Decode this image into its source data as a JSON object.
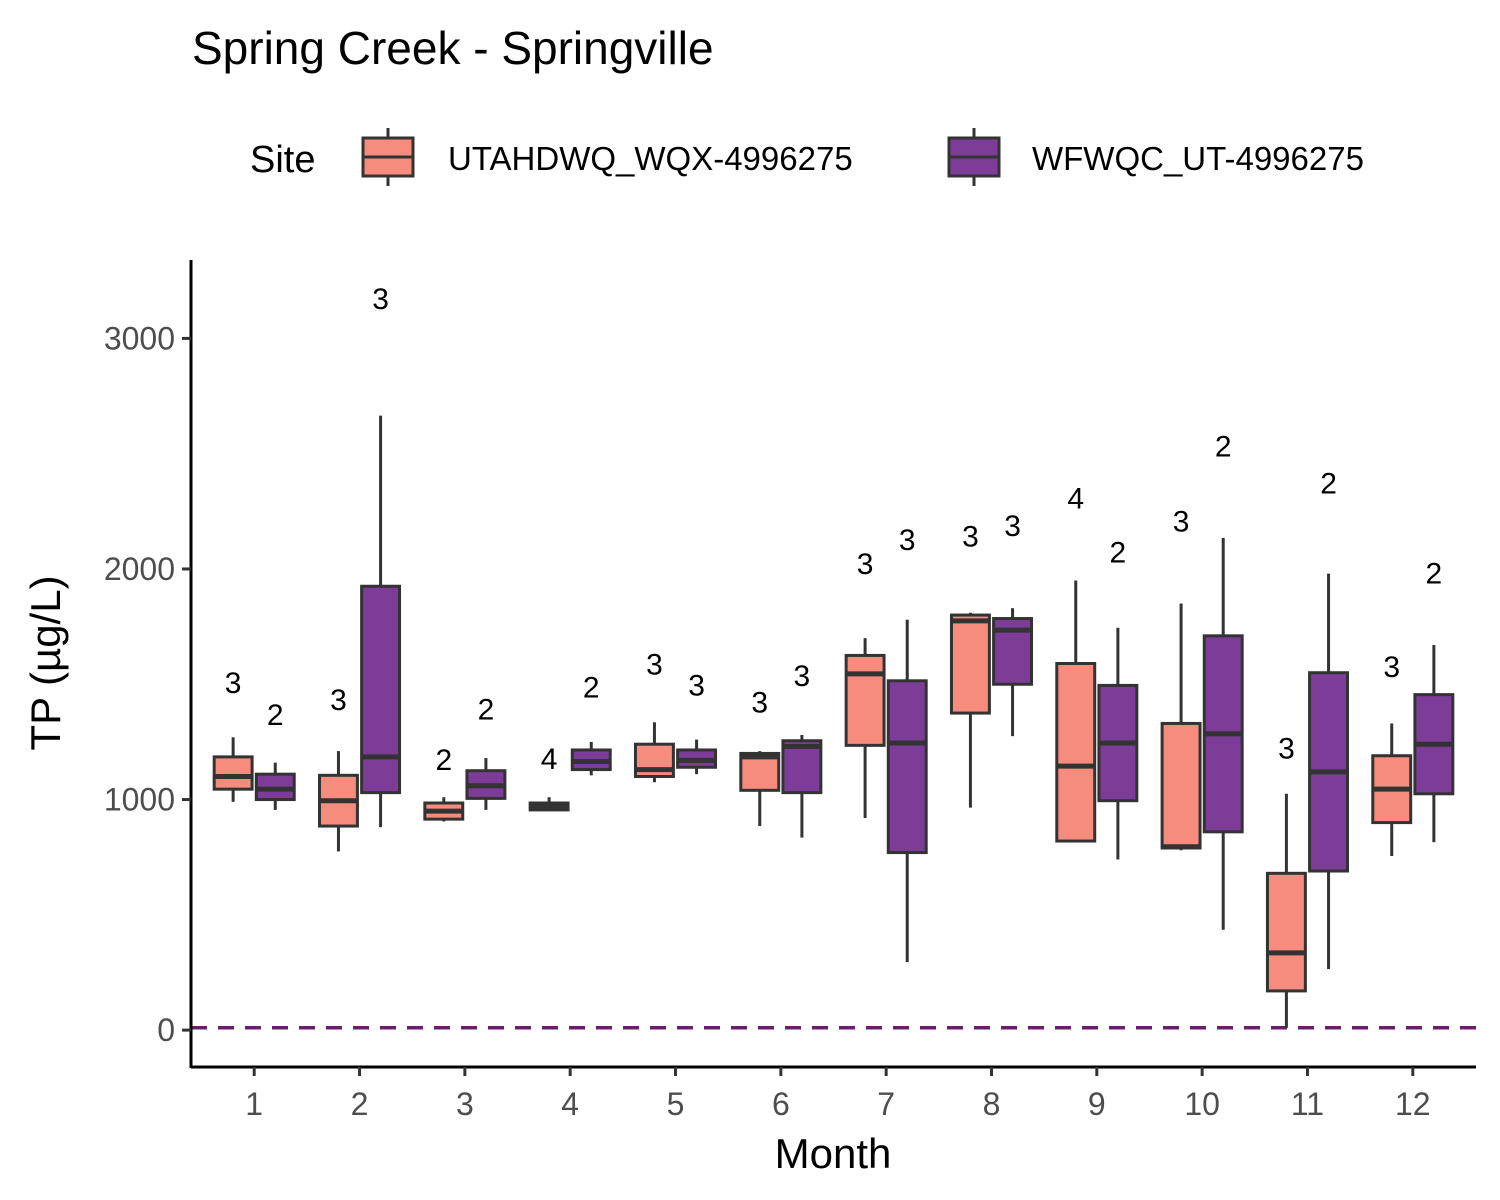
{
  "chart_data": {
    "type": "boxplot",
    "title": "Spring Creek - Springville",
    "xlabel": "Month",
    "ylabel": "TP (µg/L)",
    "ylim": [
      -160,
      3340
    ],
    "yticks": [
      0,
      1000,
      2000,
      3000
    ],
    "categories": [
      "1",
      "2",
      "3",
      "4",
      "5",
      "6",
      "7",
      "8",
      "9",
      "10",
      "11",
      "12"
    ],
    "reference_line": {
      "y": 10,
      "style": "dashed",
      "color": "#6a1d6e"
    },
    "legend": {
      "title": "Site",
      "position": "top"
    },
    "series": [
      {
        "name": "UTAHDWQ_WQX-4996275",
        "color": "#f58c7d",
        "boxes": [
          {
            "month": "1",
            "min": 990,
            "q1": 1045,
            "median": 1100,
            "q3": 1185,
            "max": 1270,
            "n": 3,
            "label_y": 1510
          },
          {
            "month": "2",
            "min": 775,
            "q1": 885,
            "median": 995,
            "q3": 1105,
            "max": 1210,
            "n": 3,
            "label_y": 1435
          },
          {
            "month": "3",
            "min": 905,
            "q1": 915,
            "median": 950,
            "q3": 985,
            "max": 1010,
            "n": 2,
            "label_y": 1175
          },
          {
            "month": "4",
            "min": 950,
            "q1": 955,
            "median": 968,
            "q3": 985,
            "max": 1010,
            "n": 4,
            "label_y": 1180
          },
          {
            "month": "5",
            "min": 1075,
            "q1": 1100,
            "median": 1130,
            "q3": 1240,
            "max": 1335,
            "n": 3,
            "label_y": 1590
          },
          {
            "month": "6",
            "min": 885,
            "q1": 1040,
            "median": 1185,
            "q3": 1200,
            "max": 1210,
            "n": 3,
            "label_y": 1425
          },
          {
            "month": "7",
            "min": 920,
            "q1": 1235,
            "median": 1545,
            "q3": 1625,
            "max": 1700,
            "n": 3,
            "label_y": 2025
          },
          {
            "month": "8",
            "min": 965,
            "q1": 1375,
            "median": 1775,
            "q3": 1800,
            "max": 1810,
            "n": 3,
            "label_y": 2145
          },
          {
            "month": "9",
            "min": 820,
            "q1": 820,
            "median": 1145,
            "q3": 1590,
            "max": 1950,
            "n": 4,
            "label_y": 2310
          },
          {
            "month": "10",
            "min": 780,
            "q1": 790,
            "median": 795,
            "q3": 1330,
            "max": 1850,
            "n": 3,
            "label_y": 2210
          },
          {
            "month": "11",
            "min": 10,
            "q1": 170,
            "median": 335,
            "q3": 680,
            "max": 1025,
            "n": 3,
            "label_y": 1225
          },
          {
            "month": "12",
            "min": 755,
            "q1": 900,
            "median": 1045,
            "q3": 1190,
            "max": 1330,
            "n": 3,
            "label_y": 1580
          }
        ]
      },
      {
        "name": "WFWQC_UT-4996275",
        "color": "#7d3c98",
        "boxes": [
          {
            "month": "1",
            "min": 955,
            "q1": 1000,
            "median": 1045,
            "q3": 1110,
            "max": 1160,
            "n": 2,
            "label_y": 1370
          },
          {
            "month": "2",
            "min": 880,
            "q1": 1030,
            "median": 1185,
            "q3": 1925,
            "max": 2665,
            "n": 3,
            "label_y": 3175
          },
          {
            "month": "3",
            "min": 955,
            "q1": 1005,
            "median": 1060,
            "q3": 1125,
            "max": 1180,
            "n": 2,
            "label_y": 1395
          },
          {
            "month": "4",
            "min": 1105,
            "q1": 1130,
            "median": 1165,
            "q3": 1215,
            "max": 1250,
            "n": 2,
            "label_y": 1490
          },
          {
            "month": "5",
            "min": 1110,
            "q1": 1140,
            "median": 1170,
            "q3": 1215,
            "max": 1260,
            "n": 3,
            "label_y": 1500
          },
          {
            "month": "6",
            "min": 835,
            "q1": 1030,
            "median": 1230,
            "q3": 1255,
            "max": 1280,
            "n": 3,
            "label_y": 1540
          },
          {
            "month": "7",
            "min": 295,
            "q1": 770,
            "median": 1245,
            "q3": 1515,
            "max": 1780,
            "n": 3,
            "label_y": 2130
          },
          {
            "month": "8",
            "min": 1275,
            "q1": 1500,
            "median": 1735,
            "q3": 1785,
            "max": 1830,
            "n": 3,
            "label_y": 2190
          },
          {
            "month": "9",
            "min": 740,
            "q1": 995,
            "median": 1245,
            "q3": 1495,
            "max": 1745,
            "n": 2,
            "label_y": 2075
          },
          {
            "month": "10",
            "min": 435,
            "q1": 860,
            "median": 1285,
            "q3": 1710,
            "max": 2135,
            "n": 2,
            "label_y": 2535
          },
          {
            "month": "11",
            "min": 265,
            "q1": 690,
            "median": 1120,
            "q3": 1550,
            "max": 1980,
            "n": 2,
            "label_y": 2375
          },
          {
            "month": "12",
            "min": 815,
            "q1": 1025,
            "median": 1240,
            "q3": 1455,
            "max": 1670,
            "n": 2,
            "label_y": 1985
          }
        ]
      }
    ]
  }
}
